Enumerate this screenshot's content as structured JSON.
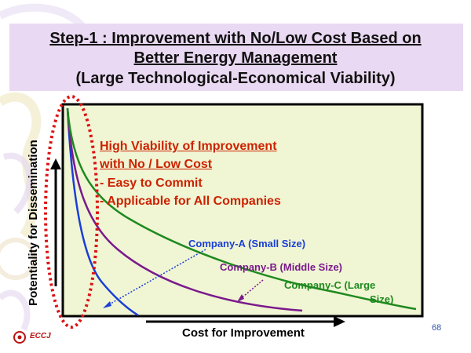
{
  "title": {
    "line1": "Step-1 : Improvement with No/Low Cost Based on",
    "line2": "Better Energy Management",
    "line3": "(Large Technological-Economical Viability)"
  },
  "annotation": {
    "heading1": "High Viability of Improvement",
    "heading2": "with No / Low Cost",
    "bullet1": "- Easy to Commit",
    "bullet2": "- Applicable for All Companies"
  },
  "curves": {
    "company_a": "Company-A (Small Size)",
    "company_b": "Company-B (Middle Size)",
    "company_c_line1": "Company-C (Large",
    "company_c_line2": "Size)"
  },
  "axes": {
    "x_label": "Cost for Improvement",
    "y_label": "Potentiality for Dissemination"
  },
  "footer": {
    "logo": "ECCJ",
    "page_number": "68"
  },
  "colors": {
    "plot_background": "#f0f5d4",
    "title_background": "#ead9f2",
    "company_a": "#1a3fd6",
    "company_b": "#7a1a8c",
    "company_c": "#1e8a1e",
    "highlight_ellipse": "#dd1111",
    "annotation_heading": "#cc2200"
  }
}
